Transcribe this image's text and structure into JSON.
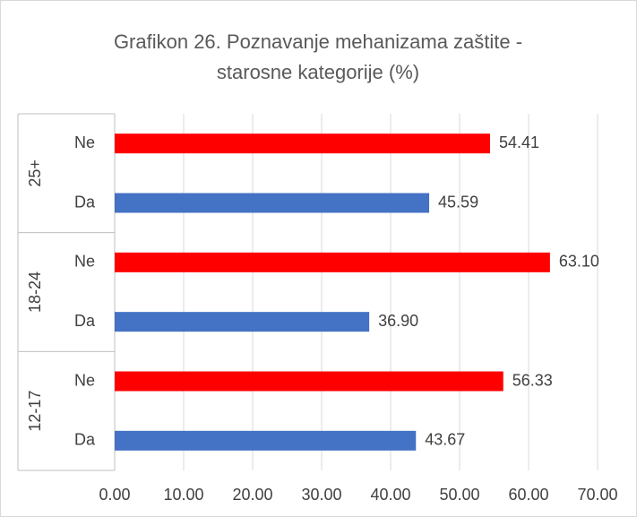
{
  "chart_data": {
    "type": "bar",
    "orientation": "horizontal",
    "title": "Grafikon 26. Poznavanje mehanizama zaštite - starosne kategorije (%)",
    "categories": [
      "12-17",
      "18-24",
      "25+"
    ],
    "series": [
      {
        "name": "Da",
        "color": "#4472c4",
        "values": [
          43.67,
          36.9,
          45.59
        ],
        "value_labels": [
          "43.67",
          "36.90",
          "45.59"
        ]
      },
      {
        "name": "Ne",
        "color": "#ff0000",
        "values": [
          56.33,
          63.1,
          54.41
        ],
        "value_labels": [
          "56.33",
          "63.10",
          "54.41"
        ]
      }
    ],
    "xlim": [
      0,
      70
    ],
    "xticks": [
      {
        "value": 0,
        "label": "0.00"
      },
      {
        "value": 10,
        "label": "10.00"
      },
      {
        "value": 20,
        "label": "20.00"
      },
      {
        "value": 30,
        "label": "30.00"
      },
      {
        "value": 40,
        "label": "40.00"
      },
      {
        "value": 50,
        "label": "50.00"
      },
      {
        "value": 60,
        "label": "60.00"
      },
      {
        "value": 70,
        "label": "70.00"
      }
    ],
    "grid": true
  }
}
